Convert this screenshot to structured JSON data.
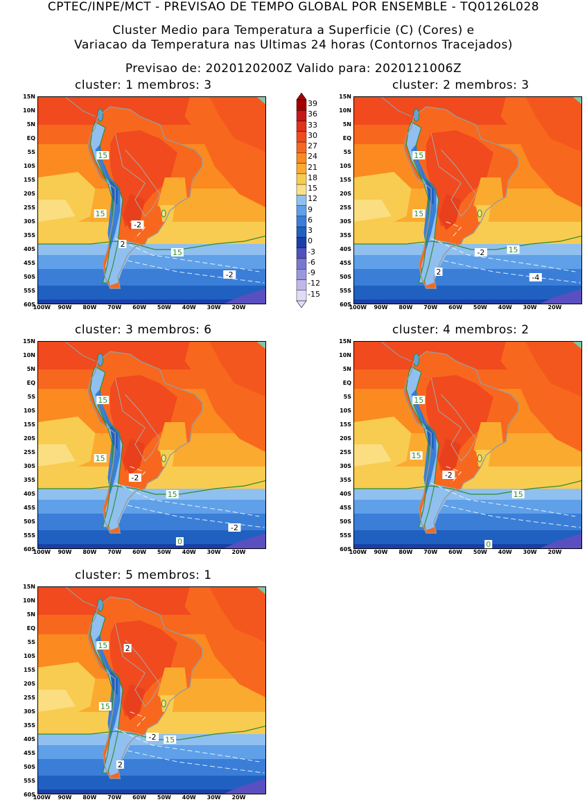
{
  "header": {
    "line1": "CPTEC/INPE/MCT - PREVISAO DE TEMPO GLOBAL POR ENSEMBLE - TQ0126L028",
    "line2": "Cluster Medio para Temperatura a Superficie (C) (Cores) e",
    "line3": "Variacao da Temperatura nas Ultimas 24 horas (Contornos Tracejados)",
    "line4": "Previsao de: 2020120200Z    Valido para: 2020121006Z"
  },
  "y_ticks": [
    "15N",
    "10N",
    "5N",
    "EQ",
    "5S",
    "10S",
    "15S",
    "20S",
    "25S",
    "30S",
    "35S",
    "40S",
    "45S",
    "50S",
    "55S",
    "60S"
  ],
  "x_ticks": [
    "100W",
    "90W",
    "80W",
    "70W",
    "60W",
    "50W",
    "40W",
    "30W",
    "20W"
  ],
  "colorbar": {
    "levels": [
      "39",
      "36",
      "33",
      "30",
      "27",
      "24",
      "21",
      "18",
      "15",
      "12",
      "9",
      "6",
      "3",
      "0",
      "-3",
      "-6",
      "-9",
      "-12",
      "-15"
    ],
    "colors": [
      "#a50000",
      "#c41818",
      "#e0301e",
      "#f04a1e",
      "#f8671e",
      "#fb8a20",
      "#fbaa30",
      "#f8cc50",
      "#fbe08a",
      "#8fc0f0",
      "#5fa0e8",
      "#3a7ed8",
      "#2060c0",
      "#1a3fa8",
      "#5050c0",
      "#7878d0",
      "#9a98dc",
      "#c0b8ea",
      "#e0dcf6"
    ]
  },
  "clusters": [
    {
      "title": "cluster: 1  membros: 3",
      "labels": [
        {
          "text": "15",
          "kind": "green",
          "lon": -75,
          "lat": -6
        },
        {
          "text": "15",
          "kind": "green",
          "lon": -76,
          "lat": -27
        },
        {
          "text": "-2",
          "kind": "white",
          "lon": -61,
          "lat": -31
        },
        {
          "text": "2",
          "kind": "white",
          "lon": -67,
          "lat": -38
        },
        {
          "text": "15",
          "kind": "green",
          "lon": -45,
          "lat": -41
        },
        {
          "text": "-2",
          "kind": "white",
          "lon": -24,
          "lat": -49
        }
      ]
    },
    {
      "title": "cluster: 2  membros: 3",
      "labels": [
        {
          "text": "15",
          "kind": "green",
          "lon": -75,
          "lat": -6
        },
        {
          "text": "15",
          "kind": "green",
          "lon": -75,
          "lat": -27
        },
        {
          "text": "-2",
          "kind": "white",
          "lon": -50,
          "lat": -41
        },
        {
          "text": "15",
          "kind": "green",
          "lon": -37,
          "lat": -40
        },
        {
          "text": "2",
          "kind": "white",
          "lon": -67,
          "lat": -48
        },
        {
          "text": "-4",
          "kind": "white",
          "lon": -28,
          "lat": -50
        }
      ]
    },
    {
      "title": "cluster: 3  membros: 6",
      "labels": [
        {
          "text": "15",
          "kind": "green",
          "lon": -75,
          "lat": -6
        },
        {
          "text": "15",
          "kind": "green",
          "lon": -76,
          "lat": -27
        },
        {
          "text": "-2",
          "kind": "white",
          "lon": -62,
          "lat": -34
        },
        {
          "text": "15",
          "kind": "green",
          "lon": -47,
          "lat": -40
        },
        {
          "text": "-2",
          "kind": "white",
          "lon": -22,
          "lat": -52
        },
        {
          "text": "0",
          "kind": "green",
          "lon": -44,
          "lat": -57
        }
      ]
    },
    {
      "title": "cluster: 4  membros: 2",
      "labels": [
        {
          "text": "15",
          "kind": "green",
          "lon": -75,
          "lat": -6
        },
        {
          "text": "15",
          "kind": "green",
          "lon": -76,
          "lat": -26
        },
        {
          "text": "-2",
          "kind": "white",
          "lon": -63,
          "lat": -33
        },
        {
          "text": "15",
          "kind": "green",
          "lon": -35,
          "lat": -40
        },
        {
          "text": "0",
          "kind": "green",
          "lon": -47,
          "lat": -58
        }
      ]
    },
    {
      "title": "cluster: 5  membros: 1",
      "labels": [
        {
          "text": "15",
          "kind": "green",
          "lon": -75,
          "lat": -6
        },
        {
          "text": "2",
          "kind": "white",
          "lon": -65,
          "lat": -7
        },
        {
          "text": "15",
          "kind": "green",
          "lon": -74,
          "lat": -28
        },
        {
          "text": "-2",
          "kind": "white",
          "lon": -55,
          "lat": -39
        },
        {
          "text": "15",
          "kind": "green",
          "lon": -48,
          "lat": -40
        },
        {
          "text": "2",
          "kind": "white",
          "lon": -68,
          "lat": -49
        }
      ]
    }
  ]
}
